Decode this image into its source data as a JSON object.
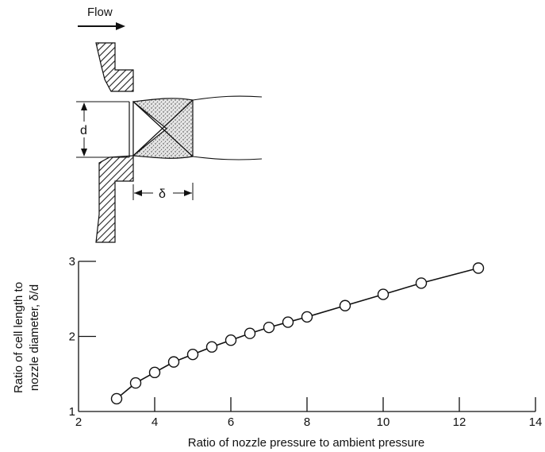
{
  "diagram": {
    "flow_label": "Flow",
    "diameter_label": "d",
    "cell_length_label": "δ"
  },
  "chart_data": {
    "type": "line",
    "title": "",
    "xlabel": "Ratio of nozzle pressure to ambient pressure",
    "ylabel": "Ratio of cell length to nozzle diameter,  δ/d",
    "xlim": [
      2,
      14
    ],
    "ylim": [
      1,
      3
    ],
    "x_ticks": [
      2,
      4,
      6,
      8,
      10,
      12,
      14
    ],
    "y_ticks": [
      1,
      2,
      3
    ],
    "grid": false,
    "marker": "open-circle",
    "series": [
      {
        "x": [
          3,
          3.5,
          4,
          4.5,
          5,
          5.5,
          6,
          6.5,
          7,
          7.5,
          8,
          9,
          10,
          11,
          12.5
        ],
        "y": [
          1.17,
          1.38,
          1.52,
          1.66,
          1.76,
          1.86,
          1.95,
          2.04,
          2.12,
          2.19,
          2.26,
          2.41,
          2.56,
          2.71,
          2.91
        ]
      }
    ]
  }
}
